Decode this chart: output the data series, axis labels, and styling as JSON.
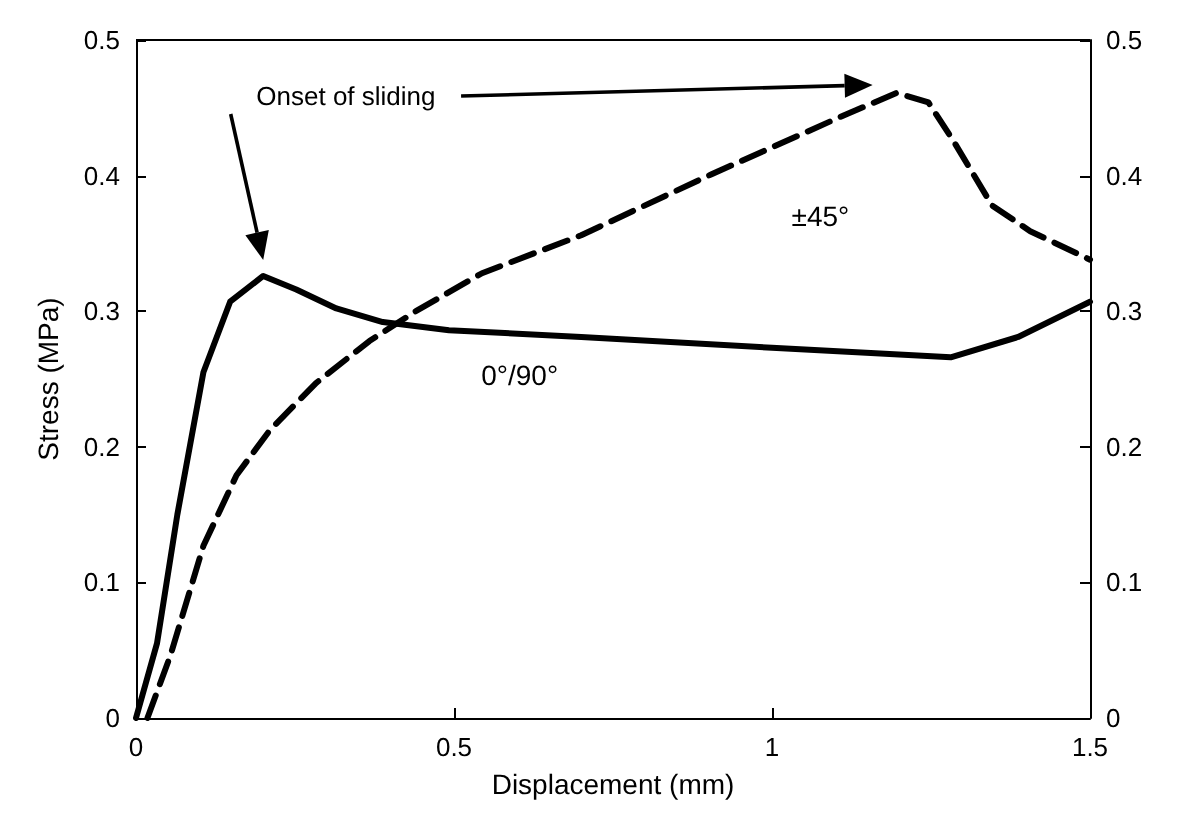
{
  "chart_data": {
    "type": "line",
    "xlabel": "Displacement (mm)",
    "ylabel": "Stress (MPa)",
    "xlim": [
      0,
      1.5
    ],
    "xticks": [
      0,
      0.5,
      1,
      1.5
    ],
    "ylim": [
      0,
      0.5
    ],
    "yticks": [
      0,
      0.1,
      0.2,
      0.3,
      0.4,
      0.5
    ],
    "y2lim": [
      0,
      0.5
    ],
    "y2ticks": [
      0,
      0.1,
      0.2,
      0.3,
      0.4,
      0.5
    ],
    "grid": false,
    "legend": false,
    "marker": "none",
    "annotations": [
      "Onset of sliding"
    ],
    "series": [
      {
        "name": "0°/90°",
        "color": "#000000",
        "line_style": "solid",
        "x": [
          0,
          0.033,
          0.065,
          0.106,
          0.148,
          0.2,
          0.252,
          0.315,
          0.388,
          0.492,
          0.7,
          1.0,
          1.281,
          1.387,
          1.5
        ],
        "values": [
          0,
          0.055,
          0.15,
          0.255,
          0.307,
          0.326,
          0.316,
          0.302,
          0.292,
          0.286,
          0.281,
          0.273,
          0.266,
          0.281,
          0.307
        ]
      },
      {
        "name": "±45°",
        "color": "#000000",
        "line_style": "dashed",
        "x": [
          0.018,
          0.054,
          0.106,
          0.158,
          0.21,
          0.283,
          0.367,
          0.44,
          0.544,
          0.7,
          0.905,
          1.106,
          1.196,
          1.246,
          1.286,
          1.346,
          1.406,
          1.5
        ],
        "values": [
          0,
          0.046,
          0.127,
          0.179,
          0.212,
          0.247,
          0.278,
          0.3,
          0.328,
          0.356,
          0.401,
          0.443,
          0.461,
          0.454,
          0.425,
          0.378,
          0.359,
          0.338
        ]
      }
    ]
  }
}
